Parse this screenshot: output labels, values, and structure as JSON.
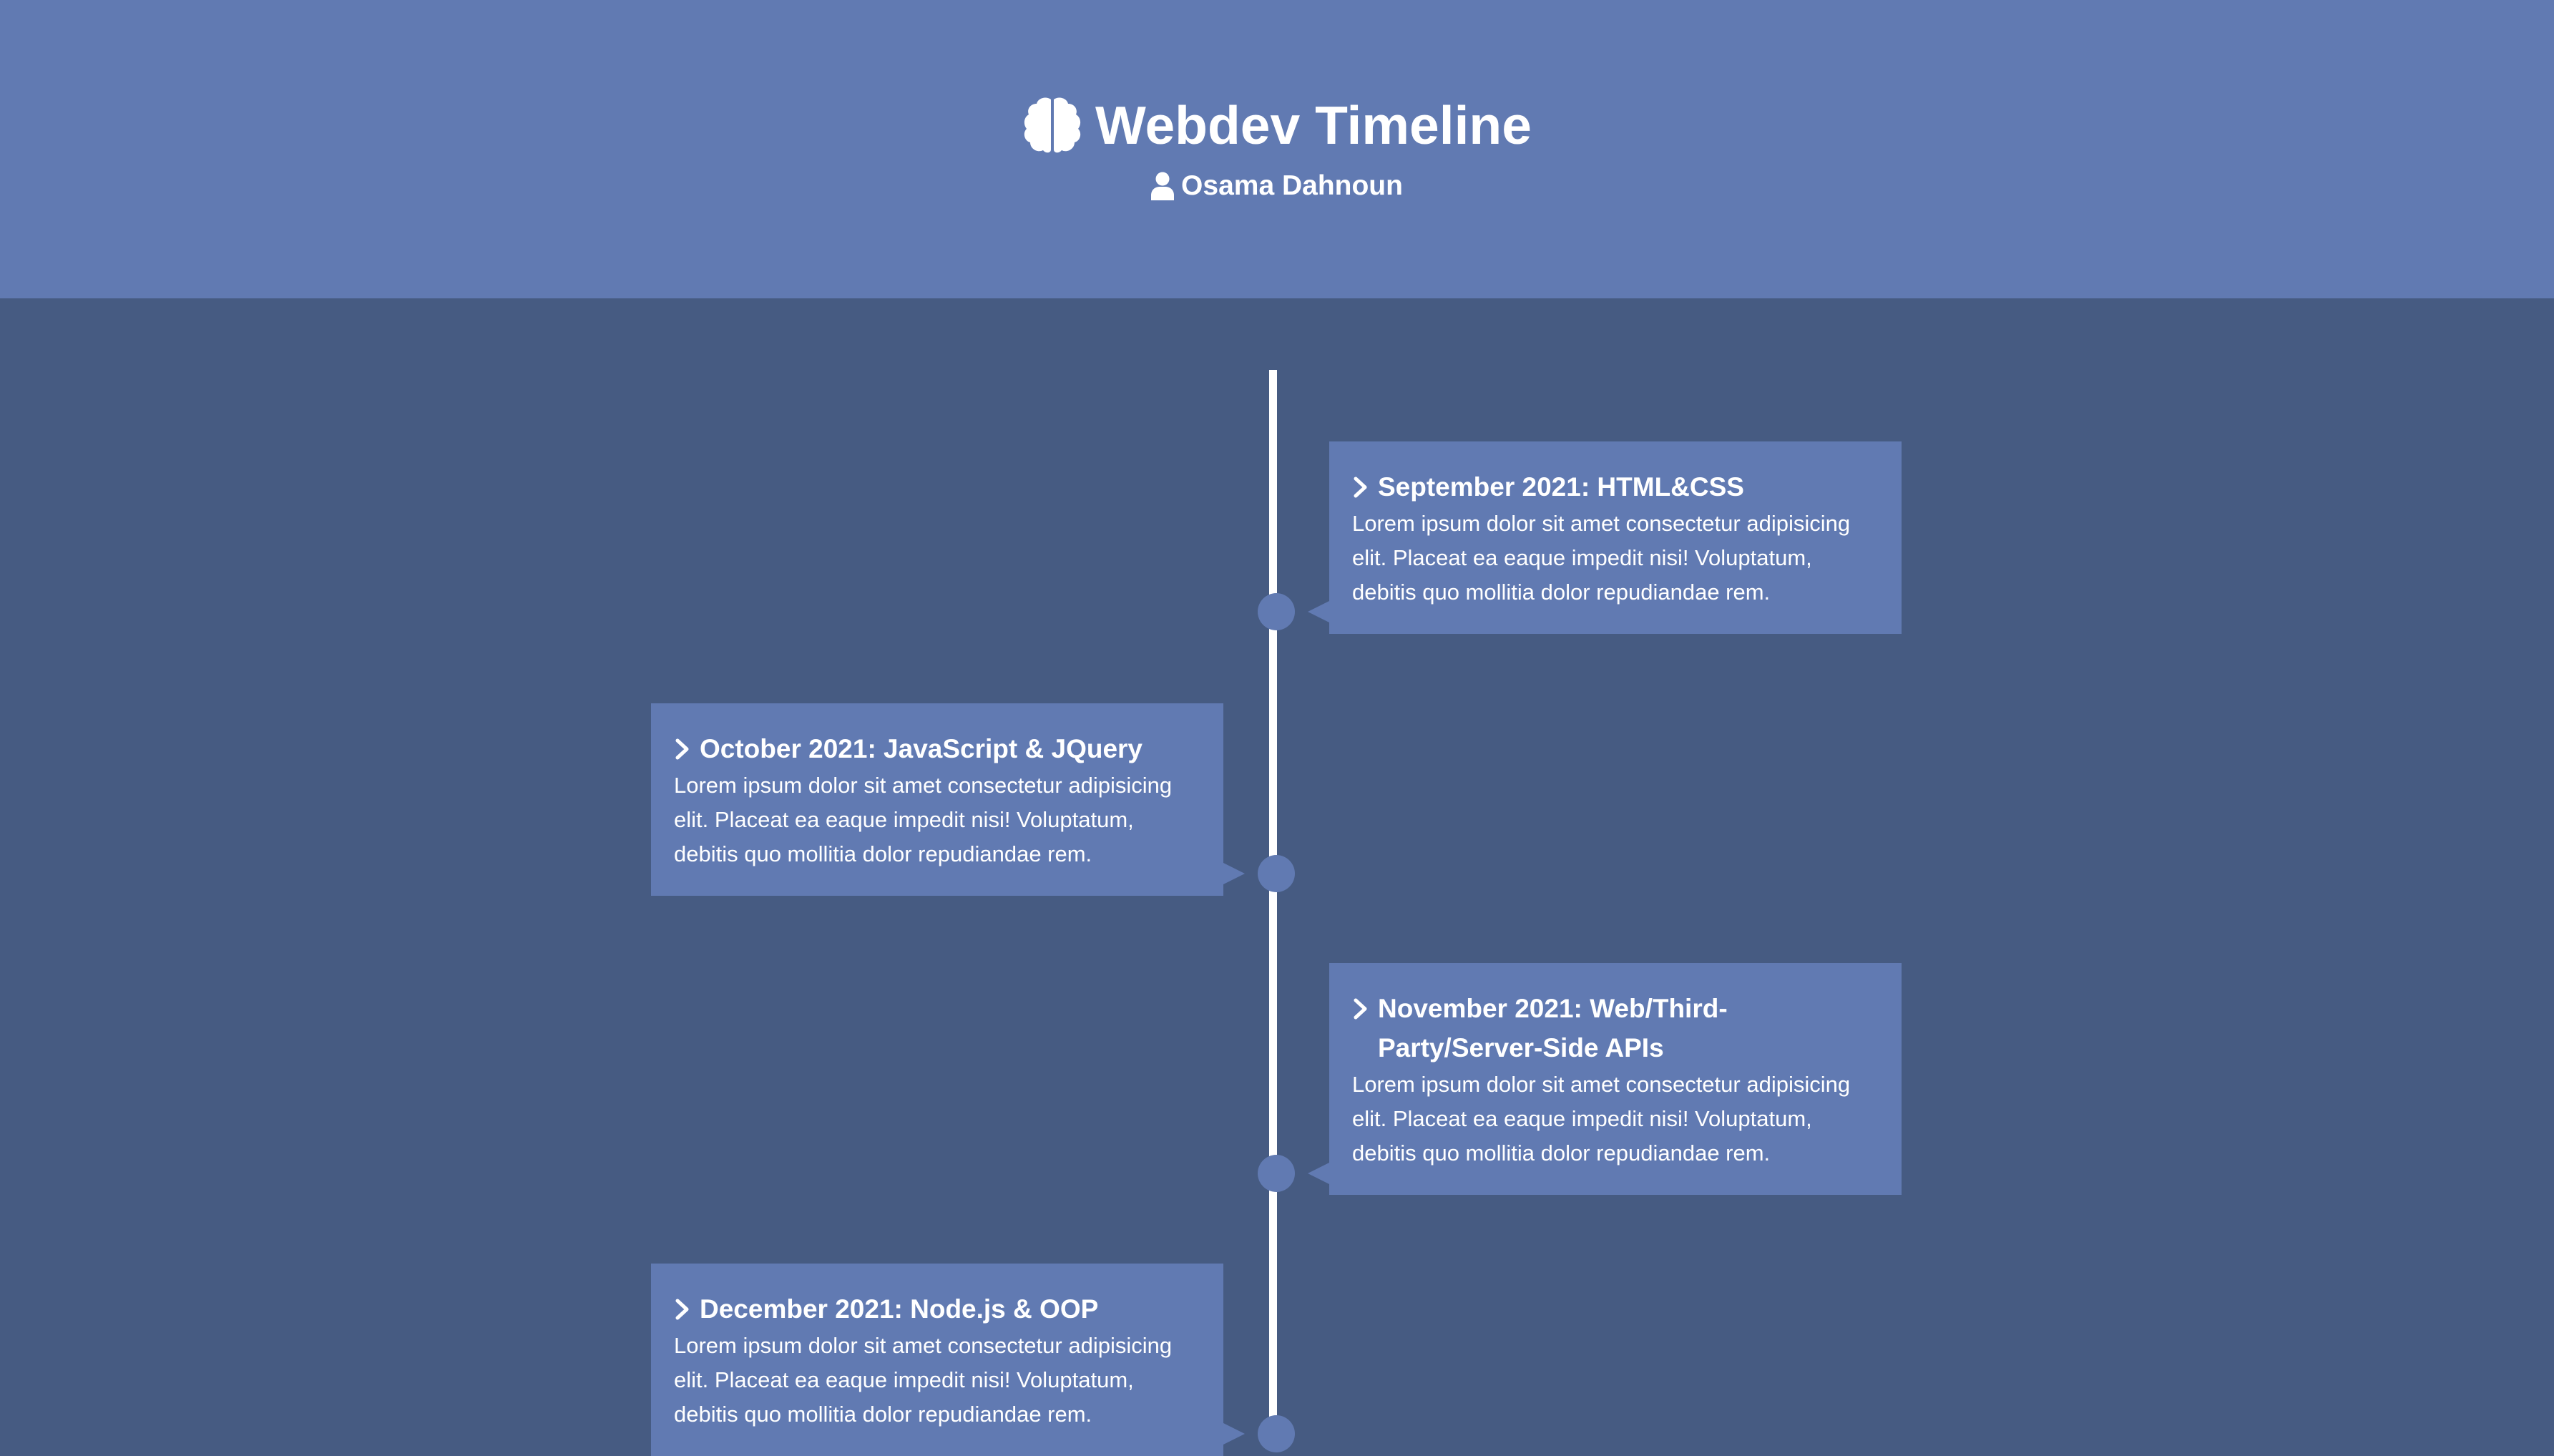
{
  "header": {
    "title": "Webdev Timeline",
    "author": "Osama Dahnoun",
    "icons": {
      "title_icon": "brain-icon",
      "author_icon": "user-icon"
    }
  },
  "timeline": {
    "items": [
      {
        "side": "right",
        "title": "September 2021: HTML&CSS",
        "body": "Lorem ipsum dolor sit amet consectetur adipisicing elit. Placeat ea eaque impedit nisi! Voluptatum, debitis quo mollitia dolor repudiandae rem."
      },
      {
        "side": "left",
        "title": "October 2021: JavaScript & JQuery",
        "body": "Lorem ipsum dolor sit amet consectetur adipisicing elit. Placeat ea eaque impedit nisi! Voluptatum, debitis quo mollitia dolor repudiandae rem."
      },
      {
        "side": "right",
        "title": "November 2021: Web/Third-Party/Server-Side APIs",
        "body": "Lorem ipsum dolor sit amet consectetur adipisicing elit. Placeat ea eaque impedit nisi! Voluptatum, debitis quo mollitia dolor repudiandae rem."
      },
      {
        "side": "left",
        "title": "December 2021: Node.js & OOP",
        "body": "Lorem ipsum dolor sit amet consectetur adipisicing elit. Placeat ea eaque impedit nisi! Voluptatum, debitis quo mollitia dolor repudiandae rem."
      }
    ],
    "item_icon": "chevron-right-icon"
  },
  "colors": {
    "header_bg": "#617ab2",
    "page_bg": "#465b82",
    "card_bg": "#617ab2",
    "line": "#ffffff",
    "text": "#ffffff"
  }
}
